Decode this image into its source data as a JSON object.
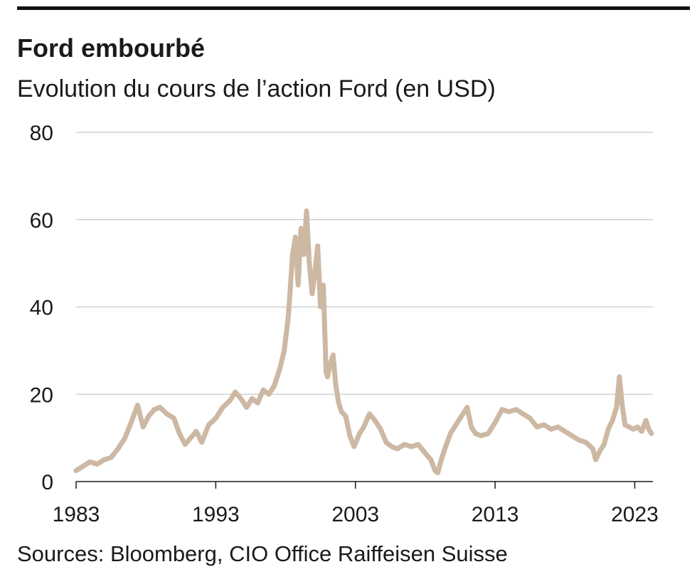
{
  "header": {
    "title": "Ford embourbé",
    "subtitle": "Evolution du cours de l’action Ford (en USD)"
  },
  "footer": {
    "source": "Sources: Bloomberg, CIO Office Raiffeisen Suisse"
  },
  "colors": {
    "line": "#cdb8a4",
    "grid": "#c8c8c8",
    "axis": "#1a1a1a",
    "rule": "#111111"
  },
  "chart_data": {
    "type": "line",
    "title": "Ford embourbé",
    "subtitle": "Evolution du cours de l’action Ford (en USD)",
    "xlabel": "",
    "ylabel": "",
    "xlim": [
      1983,
      2024.3
    ],
    "ylim": [
      0,
      80
    ],
    "x_ticks": [
      1983,
      1993,
      2003,
      2013,
      2023
    ],
    "y_ticks": [
      0,
      20,
      40,
      60,
      80
    ],
    "grid": true,
    "legend": "none",
    "series": [
      {
        "x": [
          1983.0,
          1983.5,
          1984.0,
          1984.5,
          1985.0,
          1985.5,
          1986.0,
          1986.5,
          1987.0,
          1987.4,
          1987.8,
          1988.2,
          1988.6,
          1989.0,
          1989.5,
          1990.0,
          1990.4,
          1990.8,
          1991.2,
          1991.6,
          1992.0,
          1992.5,
          1993.0,
          1993.5,
          1994.0,
          1994.4,
          1994.8,
          1995.2,
          1995.6,
          1996.0,
          1996.4,
          1996.8,
          1997.2,
          1997.6,
          1997.9,
          1998.2,
          1998.5,
          1998.7,
          1998.9,
          1999.1,
          1999.3,
          1999.5,
          1999.7,
          1999.9,
          2000.1,
          2000.3,
          2000.5,
          2000.7,
          2000.9,
          2001.0,
          2001.2,
          2001.4,
          2001.6,
          2001.8,
          2002.0,
          2002.3,
          2002.6,
          2002.9,
          2003.1,
          2003.3,
          2003.6,
          2004.0,
          2004.4,
          2004.8,
          2005.2,
          2005.6,
          2006.0,
          2006.5,
          2007.0,
          2007.5,
          2008.0,
          2008.4,
          2008.7,
          2008.9,
          2009.1,
          2009.4,
          2009.8,
          2010.2,
          2010.6,
          2011.0,
          2011.3,
          2011.6,
          2012.0,
          2012.5,
          2013.0,
          2013.5,
          2014.0,
          2014.5,
          2015.0,
          2015.5,
          2016.0,
          2016.5,
          2017.0,
          2017.5,
          2018.0,
          2018.5,
          2019.0,
          2019.5,
          2020.0,
          2020.2,
          2020.5,
          2020.8,
          2021.1,
          2021.4,
          2021.7,
          2021.9,
          2022.1,
          2022.3,
          2022.6,
          2022.9,
          2023.2,
          2023.5,
          2023.8,
          2024.0,
          2024.2
        ],
        "values": [
          2.5,
          3.5,
          4.5,
          4.0,
          5.0,
          5.5,
          7.5,
          10.0,
          14.0,
          17.5,
          12.5,
          15.0,
          16.5,
          17.0,
          15.5,
          14.5,
          11.0,
          8.5,
          10.0,
          11.5,
          9.0,
          13.0,
          14.5,
          17.0,
          18.5,
          20.5,
          19.0,
          17.0,
          19.0,
          18.0,
          21.0,
          20.0,
          22.0,
          26.0,
          30.0,
          38.0,
          52.0,
          56.0,
          45.0,
          58.0,
          52.0,
          62.0,
          50.0,
          43.0,
          48.0,
          54.0,
          40.0,
          45.0,
          25.0,
          24.0,
          27.0,
          29.0,
          22.0,
          18.0,
          16.0,
          15.0,
          10.5,
          8.0,
          9.5,
          11.0,
          12.5,
          15.5,
          14.0,
          12.0,
          9.0,
          8.0,
          7.5,
          8.5,
          8.0,
          8.5,
          6.5,
          5.0,
          2.5,
          2.0,
          4.5,
          7.5,
          11.0,
          13.0,
          15.0,
          17.0,
          12.5,
          11.0,
          10.5,
          11.0,
          13.5,
          16.5,
          16.0,
          16.5,
          15.5,
          14.5,
          12.5,
          13.0,
          12.0,
          12.5,
          11.5,
          10.5,
          9.5,
          9.0,
          7.5,
          5.0,
          7.0,
          8.5,
          12.0,
          14.0,
          17.0,
          24.0,
          17.5,
          13.0,
          12.5,
          12.0,
          12.5,
          11.5,
          14.0,
          12.0,
          11.0
        ]
      }
    ]
  }
}
